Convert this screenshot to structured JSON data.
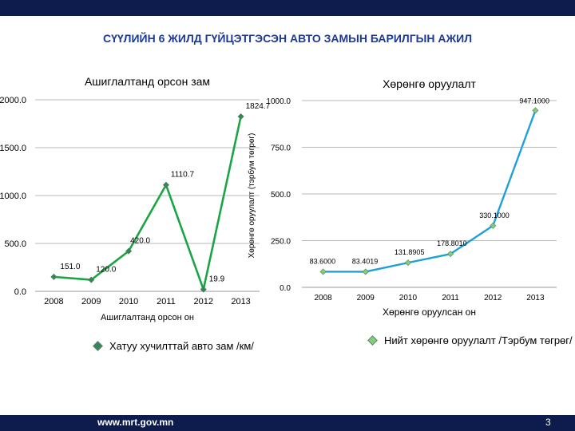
{
  "slide": {
    "title": "СҮҮЛИЙН 6 ЖИЛД ГҮЙЦЭТГЭСЭН АВТО ЗАМЫН БАРИЛГЫН АЖИЛ",
    "footer_url": "www.mrt.gov.mn",
    "page_number": "3"
  },
  "colors": {
    "header_bar": "#0d1b4d",
    "title_text": "#1f3a93",
    "left_series": "#1aa544",
    "left_marker": "#2e8b57",
    "right_series": "#1ba1d8",
    "right_marker": "#7fd07a"
  },
  "chart_data": [
    {
      "type": "line",
      "title": "Ашиглалтанд орсон зам",
      "xlabel": "Ашиглалтанд орсон он",
      "ylabel": "",
      "categories": [
        "2008",
        "2009",
        "2010",
        "2011",
        "2012",
        "2013"
      ],
      "series": [
        {
          "name": "Хатуу хучилттай авто зам /км/",
          "values": [
            151.0,
            120.0,
            420.0,
            1110.7,
            19.9,
            1824.7
          ],
          "data_labels": [
            "151.0",
            "120.0",
            "420.0",
            "1110.7",
            "19.9",
            "1824.7"
          ]
        }
      ],
      "ylim": [
        0,
        2000
      ],
      "yticks": [
        "0.0",
        "500.0",
        "1000.0",
        "1500.0",
        "2000.0"
      ],
      "grid": true,
      "legend_position": "bottom"
    },
    {
      "type": "line",
      "title": "Хөрөнгө оруулалт",
      "xlabel": "Хөрөнгө оруулсан он",
      "ylabel": "Хөрөнгө оруулалт (тэрбум төгрөг)",
      "categories": [
        "2008",
        "2009",
        "2010",
        "2011",
        "2012",
        "2013"
      ],
      "series": [
        {
          "name": "Нийт хөрөнгө оруулалт /Тэрбум төгрөг/",
          "values": [
            83.6,
            83.4019,
            131.8905,
            178.801,
            330.1,
            947.1
          ],
          "data_labels": [
            "83.6000",
            "83.4019",
            "131.8905",
            "178.8010",
            "330.1000",
            "947.1000"
          ]
        }
      ],
      "ylim": [
        0,
        1000
      ],
      "yticks": [
        "0.0",
        "250.0",
        "500.0",
        "750.0",
        "1000.0"
      ],
      "grid": true,
      "legend_position": "bottom"
    }
  ]
}
